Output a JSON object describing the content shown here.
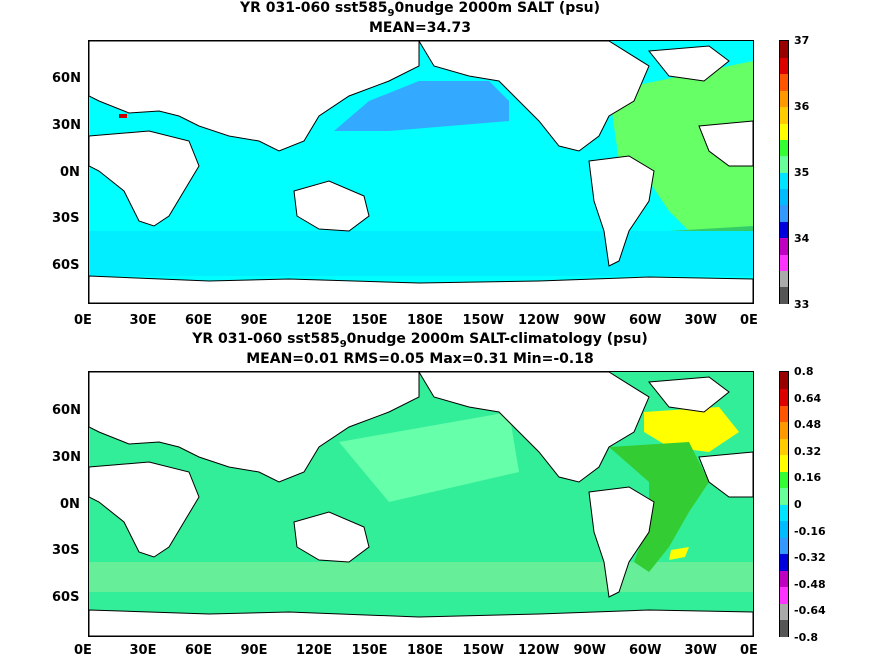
{
  "chart_data": [
    {
      "type": "heatmap",
      "title_line1_pre": "YR 031-060 sst585",
      "title_line1_sub": "9",
      "title_line1_post": "0nudge 2000m SALT (psu)",
      "title_line2": "MEAN=34.73",
      "x_tick_labels": [
        "0E",
        "30E",
        "60E",
        "90E",
        "120E",
        "150E",
        "180E",
        "150W",
        "120W",
        "90W",
        "60W",
        "30W",
        "0E"
      ],
      "y_tick_labels": [
        "60N",
        "30N",
        "0N",
        "30S",
        "60S"
      ],
      "colorbar_labels": [
        "37",
        "36",
        "35",
        "34",
        "33"
      ],
      "colorbar_colors": [
        "#555555",
        "#aaaaaa",
        "#ff33ff",
        "#c000c0",
        "#0000dd",
        "#3399ff",
        "#00bbff",
        "#00e5ff",
        "#66ff99",
        "#33ff33",
        "#ffff00",
        "#ffcc00",
        "#ff9900",
        "#ff5500",
        "#dd0000",
        "#990000"
      ],
      "ylim": [
        -80,
        90
      ],
      "colorbar_range": [
        33,
        37
      ]
    },
    {
      "type": "heatmap",
      "title_line1_pre": "YR 031-060 sst585",
      "title_line1_sub": "9",
      "title_line1_post": "0nudge 2000m SALT-climatology (psu)",
      "title_line2": "MEAN=0.01   RMS=0.05   Max=0.31   Min=-0.18",
      "x_tick_labels": [
        "0E",
        "30E",
        "60E",
        "90E",
        "120E",
        "150E",
        "180E",
        "150W",
        "120W",
        "90W",
        "60W",
        "30W",
        "0E"
      ],
      "y_tick_labels": [
        "60N",
        "30N",
        "0N",
        "30S",
        "60S"
      ],
      "colorbar_labels": [
        "0.8",
        "0.64",
        "0.48",
        "0.32",
        "0.16",
        "0",
        "-0.16",
        "-0.32",
        "-0.48",
        "-0.64",
        "-0.8"
      ],
      "colorbar_colors": [
        "#555555",
        "#aaaaaa",
        "#ff33ff",
        "#c000c0",
        "#0000dd",
        "#3399ff",
        "#00bbff",
        "#00e5ff",
        "#66ff99",
        "#33ff33",
        "#ffff00",
        "#ffcc00",
        "#ff9900",
        "#ff5500",
        "#dd0000",
        "#990000"
      ],
      "ylim": [
        -80,
        90
      ],
      "colorbar_range": [
        -0.8,
        0.8
      ]
    }
  ]
}
